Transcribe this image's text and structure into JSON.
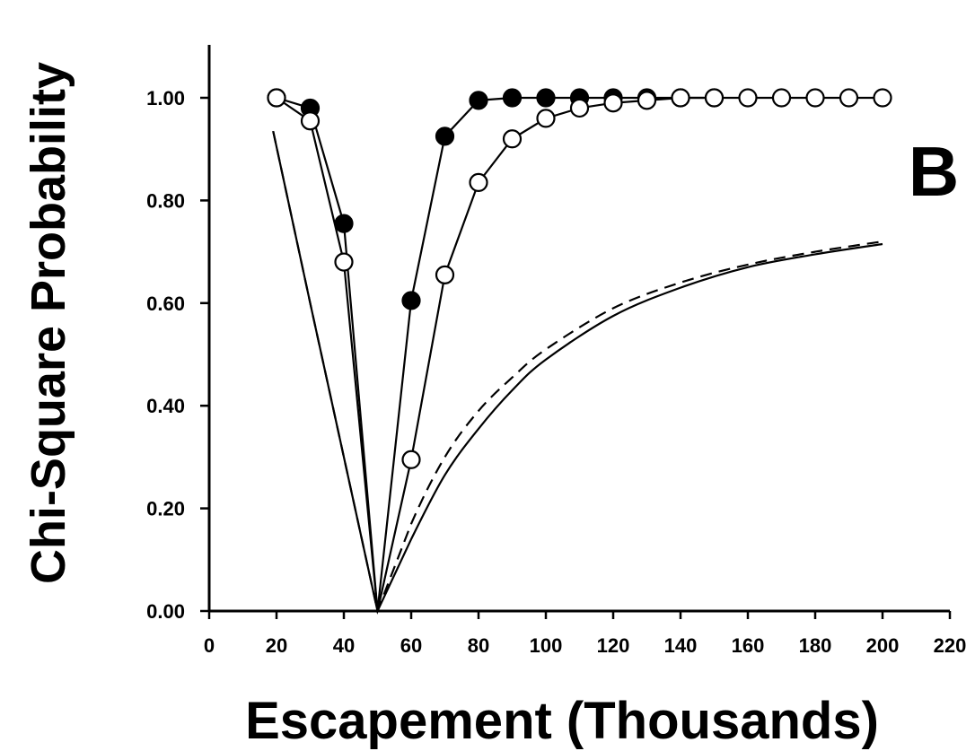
{
  "chart_data": {
    "type": "line",
    "panel_label": "B",
    "xlabel": "Escapement (Thousands)",
    "ylabel": "Chi-Square Probability",
    "xlim": [
      0,
      220
    ],
    "ylim": [
      0,
      1.0
    ],
    "x_ticks": [
      "0",
      "20",
      "40",
      "60",
      "80",
      "100",
      "120",
      "140",
      "160",
      "180",
      "200",
      "220"
    ],
    "y_ticks": [
      "0.00",
      "0.20",
      "0.40",
      "0.60",
      "0.80",
      "1.00"
    ],
    "grid": false,
    "legend": "none",
    "series": [
      {
        "style": "filled-circles",
        "color": "#000000",
        "x": [
          20,
          30,
          40,
          50,
          60,
          70,
          80,
          90,
          100,
          110,
          120,
          130,
          140,
          150
        ],
        "y": [
          1.0,
          0.98,
          0.755,
          0.0,
          0.605,
          0.925,
          0.995,
          1.0,
          1.0,
          1.0,
          1.0,
          1.0,
          1.0,
          1.0
        ]
      },
      {
        "style": "open-circles",
        "color": "#000000",
        "x": [
          20,
          30,
          40,
          50,
          60,
          70,
          80,
          90,
          100,
          110,
          120,
          130,
          140,
          150,
          160,
          170,
          180,
          190,
          200
        ],
        "y": [
          1.0,
          0.955,
          0.68,
          0.0,
          0.295,
          0.655,
          0.835,
          0.92,
          0.96,
          0.98,
          0.99,
          0.995,
          1.0,
          1.0,
          1.0,
          1.0,
          1.0,
          1.0,
          1.0
        ]
      },
      {
        "style": "solid",
        "color": "#000000",
        "x": [
          19,
          30,
          40,
          50,
          60,
          70,
          80,
          90,
          100,
          120,
          140,
          160,
          180,
          200
        ],
        "y": [
          0.935,
          0.6,
          0.3,
          0.0,
          0.14,
          0.265,
          0.355,
          0.43,
          0.49,
          0.575,
          0.63,
          0.67,
          0.695,
          0.715
        ]
      },
      {
        "style": "dashed",
        "color": "#000000",
        "x": [
          19,
          30,
          40,
          50,
          60,
          70,
          80,
          90,
          100,
          120,
          140,
          160,
          180,
          200
        ],
        "y": [
          0.935,
          0.6,
          0.3,
          0.0,
          0.17,
          0.3,
          0.39,
          0.455,
          0.51,
          0.59,
          0.64,
          0.675,
          0.7,
          0.72
        ]
      }
    ]
  }
}
